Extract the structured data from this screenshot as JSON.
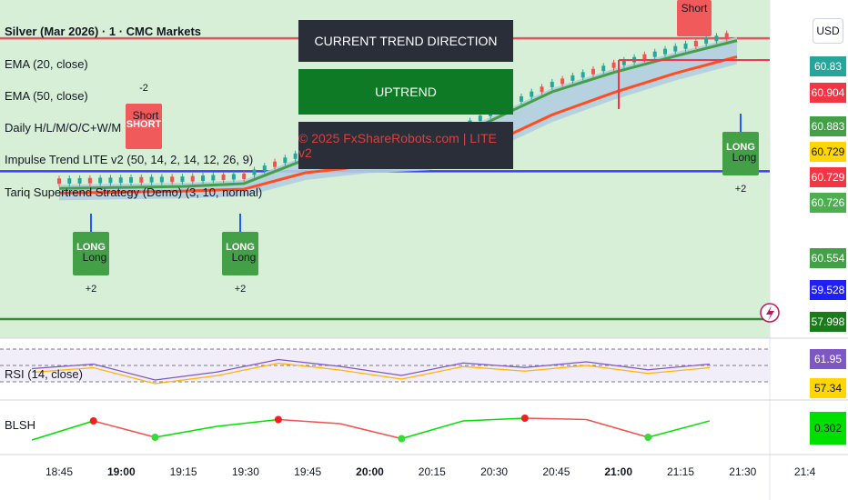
{
  "header": {
    "title": "Silver (Mar 2026) · 1 · CMC Markets",
    "indicators": [
      "EMA (20, close)",
      "EMA (50, close)",
      "Daily H/L/M/O/C+W/M",
      "Impulse Trend LITE v2 (50, 14, 2, 14, 12, 26, 9)",
      "Tariq Supertrend Strategy (Demo) (3, 10, normal)"
    ]
  },
  "currency_button": "USD",
  "trend_panel": {
    "heading": "CURRENT TREND DIRECTION",
    "value": "UPTREND",
    "watermark": "© 2025 FxShareRobots.com | LITE v2"
  },
  "price_tags": [
    {
      "label": "60.83",
      "color": "#26a69a"
    },
    {
      "label": "60.904",
      "color": "#f23645"
    },
    {
      "label": "60.883",
      "color": "#43a047"
    },
    {
      "label": "60.729",
      "color": "#ffd600"
    },
    {
      "label": "60.729",
      "color": "#f23645"
    },
    {
      "label": "60.726",
      "color": "#4caf50"
    },
    {
      "label": "60.554",
      "color": "#43a047"
    },
    {
      "label": "59.528",
      "color": "#1e1eff"
    },
    {
      "label": "57.998",
      "color": "#1b7a1b"
    }
  ],
  "signals": {
    "short_label": "Short",
    "short_badge": "SHORT",
    "long_label": "Long",
    "long_badge": "LONG",
    "minus_two": "-2",
    "plus_two": "+2"
  },
  "rsi": {
    "label": "RSI (14, close)",
    "tags": [
      {
        "label": "61.95",
        "color": "#7e57c2"
      },
      {
        "label": "57.34",
        "color": "#ffd600"
      }
    ]
  },
  "blsh": {
    "label": "BLSH",
    "tag": {
      "label": "0.302",
      "color": "#00e000"
    }
  },
  "time_axis": [
    {
      "label": "18:45",
      "bold": false
    },
    {
      "label": "19:00",
      "bold": true
    },
    {
      "label": "19:15",
      "bold": false
    },
    {
      "label": "19:30",
      "bold": false
    },
    {
      "label": "19:45",
      "bold": false
    },
    {
      "label": "20:00",
      "bold": true
    },
    {
      "label": "20:15",
      "bold": false
    },
    {
      "label": "20:30",
      "bold": false
    },
    {
      "label": "20:45",
      "bold": false
    },
    {
      "label": "21:00",
      "bold": true
    },
    {
      "label": "21:15",
      "bold": false
    },
    {
      "label": "21:30",
      "bold": false
    },
    {
      "label": "21:4",
      "bold": false
    }
  ],
  "chart_data": {
    "type": "line",
    "symbol": "Silver (Mar 2026)",
    "timeframe": "1",
    "x": [
      "18:45",
      "19:00",
      "19:15",
      "19:30",
      "19:45",
      "20:00",
      "20:15",
      "20:30",
      "20:45",
      "21:00",
      "21:15",
      "21:30"
    ],
    "series": [
      {
        "name": "EMA (20, close)",
        "values": [
          59.35,
          59.36,
          59.37,
          59.4,
          59.65,
          59.75,
          59.75,
          60.05,
          60.35,
          60.55,
          60.72,
          60.88
        ]
      },
      {
        "name": "EMA (50, close)",
        "values": [
          59.34,
          59.35,
          59.36,
          59.38,
          59.55,
          59.62,
          59.65,
          59.85,
          60.15,
          60.38,
          60.58,
          60.75
        ]
      }
    ],
    "levels": [
      {
        "value": 60.904,
        "color": "#f23645"
      },
      {
        "value": 59.528,
        "color": "#1e1eff"
      },
      {
        "value": 57.998,
        "color": "#1b7a1b"
      }
    ],
    "ylim": [
      57.8,
      61.3
    ],
    "rsi_values": [
      58,
      62,
      48,
      55,
      66,
      60,
      52,
      63,
      59,
      64,
      57,
      62
    ],
    "blsh_values": [
      -0.4,
      0.3,
      -0.3,
      0.1,
      0.35,
      0.2,
      -0.35,
      0.3,
      0.4,
      0.35,
      -0.3,
      0.302
    ]
  },
  "colors": {
    "bg_up": "#d7efd7",
    "ema20": "#43a047",
    "ema50": "#ff4d1f",
    "band": "#b3cde0",
    "candle_up": "#26a69a",
    "candle_down": "#ef5350"
  }
}
